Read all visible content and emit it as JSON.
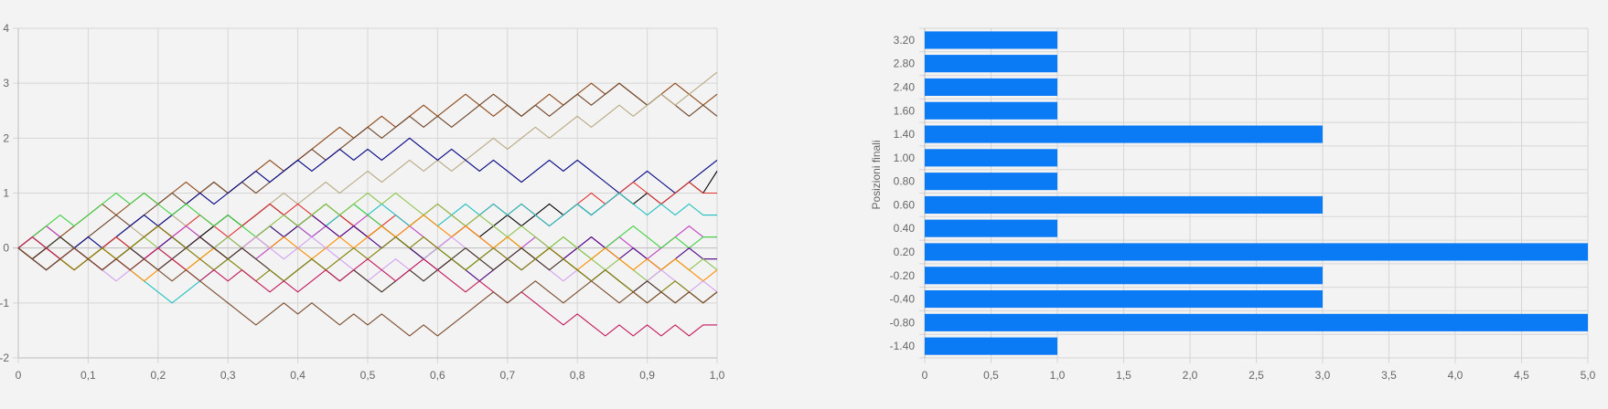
{
  "chart_data": [
    {
      "type": "line",
      "title": "",
      "xlabel": "",
      "ylabel": "",
      "xlim": [
        0,
        1
      ],
      "ylim": [
        -2,
        4
      ],
      "x_tick_labels": [
        "0",
        "0,1",
        "0,2",
        "0,3",
        "0,4",
        "0,5",
        "0,6",
        "0,7",
        "0,8",
        "0,9",
        "1,0"
      ],
      "y_tick_labels": [
        "-2",
        "-1",
        "0",
        "1",
        "2",
        "3",
        "4"
      ],
      "grid": true,
      "legend": "none",
      "steps": 50,
      "step_size": 0.2,
      "series": [
        {
          "color": "#8b4513",
          "end": 2.8,
          "values": [
            0,
            0.2,
            0.4,
            0.2,
            0.4,
            0.6,
            0.8,
            0.6,
            0.8,
            1.0,
            0.8,
            1.0,
            1.2,
            1.0,
            1.2,
            1.0,
            1.2,
            1.4,
            1.6,
            1.4,
            1.6,
            1.8,
            2.0,
            2.2,
            2.0,
            2.2,
            2.4,
            2.2,
            2.4,
            2.6,
            2.4,
            2.6,
            2.8,
            2.6,
            2.4,
            2.6,
            2.4,
            2.6,
            2.8,
            2.6,
            2.8,
            3.0,
            2.8,
            3.0,
            2.8,
            2.6,
            2.8,
            3.0,
            2.8,
            2.6,
            2.8
          ]
        },
        {
          "color": "#6b4226",
          "end": 2.4,
          "values": [
            0,
            -0.2,
            0,
            0.2,
            0,
            0.2,
            0.4,
            0.6,
            0.4,
            0.6,
            0.8,
            1.0,
            0.8,
            1.0,
            1.2,
            1.0,
            1.2,
            1.0,
            1.2,
            1.4,
            1.6,
            1.8,
            1.6,
            1.8,
            2.0,
            2.2,
            2.0,
            2.2,
            2.4,
            2.2,
            2.4,
            2.2,
            2.4,
            2.6,
            2.8,
            2.6,
            2.4,
            2.6,
            2.4,
            2.6,
            2.8,
            2.6,
            2.8,
            3.0,
            2.8,
            2.6,
            2.8,
            2.6,
            2.4,
            2.6,
            2.4
          ]
        },
        {
          "color": "#b8a882",
          "end": 3.2,
          "values": [
            0,
            -0.2,
            0,
            0.2,
            0,
            -0.2,
            0,
            0.2,
            0.4,
            0.2,
            0.4,
            0.6,
            0.4,
            0.2,
            0.4,
            0.6,
            0.4,
            0.6,
            0.8,
            1.0,
            0.8,
            1.0,
            1.2,
            1.0,
            1.2,
            1.4,
            1.2,
            1.4,
            1.6,
            1.4,
            1.6,
            1.4,
            1.6,
            1.8,
            2.0,
            1.8,
            2.0,
            2.2,
            2.0,
            2.2,
            2.4,
            2.2,
            2.4,
            2.6,
            2.4,
            2.6,
            2.8,
            2.6,
            2.8,
            3.0,
            3.2
          ]
        },
        {
          "color": "#000080",
          "end": 1.6,
          "values": [
            0,
            -0.2,
            -0.4,
            -0.2,
            0,
            0.2,
            0,
            0.2,
            0.4,
            0.6,
            0.4,
            0.6,
            0.8,
            1.0,
            0.8,
            1.0,
            1.2,
            1.4,
            1.2,
            1.4,
            1.6,
            1.4,
            1.6,
            1.8,
            1.6,
            1.8,
            1.6,
            1.8,
            2.0,
            1.8,
            1.6,
            1.8,
            1.6,
            1.4,
            1.6,
            1.4,
            1.2,
            1.4,
            1.6,
            1.4,
            1.6,
            1.4,
            1.2,
            1.0,
            1.2,
            1.4,
            1.2,
            1.0,
            1.2,
            1.4,
            1.6
          ]
        },
        {
          "color": "#000000",
          "end": 1.4,
          "values": [
            0,
            -0.2,
            -0.4,
            -0.2,
            0,
            -0.2,
            0,
            0.2,
            0,
            0.2,
            0.4,
            0.2,
            0,
            0.2,
            0.4,
            0.6,
            0.4,
            0.6,
            0.8,
            0.6,
            0.4,
            0.6,
            0.8,
            0.6,
            0.4,
            0.2,
            0.4,
            0.2,
            0,
            -0.2,
            0,
            0.2,
            0.4,
            0.2,
            0.4,
            0.6,
            0.4,
            0.6,
            0.8,
            0.6,
            0.8,
            0.6,
            0.8,
            1.0,
            0.8,
            1.0,
            0.8,
            1.0,
            1.2,
            1.0,
            1.4
          ]
        },
        {
          "color": "#e03030",
          "end": 1.0,
          "values": [
            0,
            0.2,
            0,
            -0.2,
            -0.4,
            -0.2,
            0,
            0.2,
            0,
            0.2,
            0.4,
            0.2,
            0.4,
            0.6,
            0.4,
            0.2,
            0.4,
            0.6,
            0.8,
            0.6,
            0.8,
            0.6,
            0.4,
            0.6,
            0.4,
            0.2,
            0.4,
            0.6,
            0.4,
            0.6,
            0.8,
            0.6,
            0.4,
            0.6,
            0.8,
            0.6,
            0.8,
            0.6,
            0.4,
            0.6,
            0.8,
            1.0,
            0.8,
            1.0,
            1.2,
            1.0,
            0.8,
            1.0,
            1.2,
            1.0,
            1.0
          ]
        },
        {
          "color": "#20c0c0",
          "end": 0.6,
          "values": [
            0,
            0.2,
            0,
            0.2,
            0,
            -0.2,
            -0.4,
            -0.2,
            -0.4,
            -0.6,
            -0.8,
            -1.0,
            -0.8,
            -0.6,
            -0.4,
            -0.2,
            0,
            0.2,
            0,
            0.2,
            0.4,
            0.2,
            0.4,
            0.6,
            0.8,
            0.6,
            0.8,
            0.6,
            0.4,
            0.6,
            0.4,
            0.6,
            0.8,
            0.6,
            0.8,
            0.6,
            0.8,
            0.6,
            0.4,
            0.6,
            0.8,
            0.6,
            0.8,
            1.0,
            0.8,
            0.6,
            0.8,
            0.6,
            0.8,
            0.6,
            0.6
          ]
        },
        {
          "color": "#c040c0",
          "end": 0.2,
          "values": [
            0,
            0.2,
            0.4,
            0.2,
            0,
            -0.2,
            0,
            -0.2,
            -0.4,
            -0.2,
            0,
            0.2,
            0.4,
            0.2,
            0,
            0.2,
            0,
            -0.2,
            0,
            0.2,
            0.4,
            0.2,
            0.4,
            0.2,
            0.4,
            0.6,
            0.4,
            0.2,
            0.4,
            0.2,
            0,
            0.2,
            0.4,
            0.2,
            0,
            -0.2,
            0,
            0.2,
            0,
            -0.2,
            0,
            0.2,
            0,
            0.2,
            0,
            -0.2,
            0,
            0.2,
            0.4,
            0.2,
            0.2
          ]
        },
        {
          "color": "#40d040",
          "end": 0.2,
          "values": [
            0,
            0.2,
            0.4,
            0.6,
            0.4,
            0.6,
            0.8,
            1.0,
            0.8,
            1.0,
            0.8,
            0.6,
            0.8,
            0.6,
            0.4,
            0.6,
            0.4,
            0.2,
            0.4,
            0.2,
            0.4,
            0.6,
            0.8,
            0.6,
            0.8,
            0.6,
            0.4,
            0.2,
            0,
            -0.2,
            0,
            -0.2,
            -0.4,
            -0.2,
            0,
            0.2,
            0,
            -0.2,
            0,
            0.2,
            0,
            -0.2,
            0,
            0.2,
            0.4,
            0.2,
            0,
            0.2,
            0,
            0.2,
            0.2
          ]
        },
        {
          "color": "#4b0082",
          "end": -0.2,
          "values": [
            0,
            -0.2,
            0,
            -0.2,
            -0.4,
            -0.2,
            -0.4,
            -0.2,
            0,
            -0.2,
            0,
            0.2,
            0,
            0.2,
            0,
            -0.2,
            0,
            0.2,
            0.4,
            0.2,
            0.4,
            0.6,
            0.4,
            0.2,
            0.4,
            0.2,
            0,
            0.2,
            0,
            -0.2,
            -0.4,
            -0.2,
            -0.4,
            -0.6,
            -0.4,
            -0.2,
            -0.4,
            -0.2,
            0,
            -0.2,
            0,
            0.2,
            0,
            -0.2,
            0,
            -0.2,
            -0.4,
            -0.2,
            0,
            -0.2,
            -0.2
          ]
        },
        {
          "color": "#8bc34a",
          "end": -0.4,
          "values": [
            0,
            0.2,
            0,
            0.2,
            0,
            -0.2,
            0,
            -0.2,
            0,
            0.2,
            0,
            -0.2,
            -0.4,
            -0.2,
            0,
            0.2,
            0,
            0.2,
            0.4,
            0.6,
            0.4,
            0.6,
            0.8,
            0.6,
            0.8,
            1.0,
            0.8,
            1.0,
            0.8,
            0.6,
            0.8,
            0.6,
            0.4,
            0.6,
            0.4,
            0.2,
            0.4,
            0.2,
            0,
            0.2,
            0,
            -0.2,
            -0.4,
            -0.2,
            -0.4,
            -0.6,
            -0.4,
            -0.2,
            -0.4,
            -0.2,
            -0.4
          ]
        },
        {
          "color": "#ff8c00",
          "end": -0.4,
          "values": [
            0,
            -0.2,
            0,
            -0.2,
            -0.4,
            -0.2,
            0,
            -0.2,
            -0.4,
            -0.6,
            -0.4,
            -0.2,
            -0.4,
            -0.2,
            0,
            -0.2,
            0,
            0.2,
            0,
            0.2,
            0,
            -0.2,
            0,
            0.2,
            0,
            0.2,
            0.4,
            0.2,
            0.4,
            0.6,
            0.4,
            0.2,
            0.4,
            0.2,
            0,
            0.2,
            0,
            -0.2,
            0,
            -0.2,
            -0.4,
            -0.2,
            0,
            -0.2,
            -0.4,
            -0.2,
            -0.4,
            -0.2,
            -0.4,
            -0.6,
            -0.4
          ]
        },
        {
          "color": "#d2a0f0",
          "end": -0.8,
          "values": [
            0,
            0.2,
            0,
            -0.2,
            0,
            -0.2,
            -0.4,
            -0.6,
            -0.4,
            -0.2,
            -0.4,
            -0.2,
            0,
            -0.2,
            -0.4,
            -0.2,
            0,
            0.2,
            0,
            -0.2,
            0,
            0.2,
            0,
            -0.2,
            -0.4,
            -0.6,
            -0.4,
            -0.2,
            -0.4,
            -0.2,
            0,
            0.2,
            0,
            -0.2,
            0,
            -0.2,
            -0.4,
            -0.2,
            -0.4,
            -0.6,
            -0.4,
            -0.6,
            -0.4,
            -0.6,
            -0.8,
            -0.6,
            -0.4,
            -0.6,
            -0.8,
            -0.6,
            -0.8
          ]
        },
        {
          "color": "#3d2b1f",
          "end": -0.8,
          "values": [
            0,
            -0.2,
            0,
            0.2,
            0,
            -0.2,
            -0.4,
            -0.2,
            0,
            -0.2,
            -0.4,
            -0.2,
            0,
            0.2,
            0,
            -0.2,
            0,
            -0.2,
            -0.4,
            -0.6,
            -0.4,
            -0.2,
            -0.4,
            -0.6,
            -0.4,
            -0.6,
            -0.8,
            -0.6,
            -0.4,
            -0.6,
            -0.4,
            -0.2,
            0,
            -0.2,
            -0.4,
            -0.2,
            0,
            -0.2,
            -0.4,
            -0.2,
            -0.4,
            -0.6,
            -0.4,
            -0.6,
            -0.8,
            -0.6,
            -0.8,
            -1.0,
            -0.8,
            -1.0,
            -0.8
          ]
        },
        {
          "color": "#808000",
          "end": -0.8,
          "values": [
            0,
            0.2,
            0,
            -0.2,
            -0.4,
            -0.2,
            0,
            -0.2,
            0,
            0.2,
            0.4,
            0.2,
            0,
            -0.2,
            -0.4,
            -0.2,
            -0.4,
            -0.6,
            -0.4,
            -0.6,
            -0.4,
            -0.2,
            -0.4,
            -0.2,
            0,
            -0.2,
            0,
            0.2,
            0,
            0.2,
            0,
            -0.2,
            -0.4,
            -0.2,
            0,
            -0.2,
            -0.4,
            -0.2,
            0,
            -0.2,
            -0.4,
            -0.6,
            -0.4,
            -0.6,
            -0.8,
            -1.0,
            -0.8,
            -0.6,
            -0.8,
            -1.0,
            -0.8
          ]
        },
        {
          "color": "#c2185b",
          "end": -1.4,
          "values": [
            0,
            0.2,
            0,
            -0.2,
            0,
            -0.2,
            -0.4,
            -0.2,
            -0.4,
            -0.2,
            0,
            -0.2,
            -0.4,
            -0.6,
            -0.4,
            -0.6,
            -0.4,
            -0.6,
            -0.8,
            -0.6,
            -0.8,
            -0.6,
            -0.4,
            -0.6,
            -0.4,
            -0.2,
            -0.4,
            -0.6,
            -0.4,
            -0.2,
            -0.4,
            -0.6,
            -0.8,
            -0.6,
            -0.8,
            -1.0,
            -0.8,
            -1.0,
            -1.2,
            -1.4,
            -1.2,
            -1.4,
            -1.6,
            -1.4,
            -1.6,
            -1.4,
            -1.6,
            -1.4,
            -1.6,
            -1.4,
            -1.4
          ]
        },
        {
          "color": "#7a4a2a",
          "end": -0.8,
          "values": [
            0,
            -0.2,
            -0.4,
            -0.2,
            0,
            -0.2,
            -0.4,
            -0.2,
            -0.4,
            -0.2,
            -0.4,
            -0.6,
            -0.4,
            -0.6,
            -0.8,
            -1.0,
            -1.2,
            -1.4,
            -1.2,
            -1.0,
            -1.2,
            -1.0,
            -1.2,
            -1.4,
            -1.2,
            -1.4,
            -1.2,
            -1.4,
            -1.6,
            -1.4,
            -1.6,
            -1.4,
            -1.2,
            -1.0,
            -0.8,
            -1.0,
            -0.8,
            -0.6,
            -0.8,
            -1.0,
            -0.8,
            -0.6,
            -0.8,
            -1.0,
            -0.8,
            -1.0,
            -0.8,
            -1.0,
            -0.8,
            -1.0,
            -0.8
          ]
        }
      ]
    },
    {
      "type": "bar",
      "orientation": "horizontal",
      "title": "",
      "xlabel": "",
      "ylabel": "Posizioni finali",
      "xlim": [
        0,
        5
      ],
      "x_tick_labels": [
        "0",
        "0,5",
        "1,0",
        "1,5",
        "2,0",
        "2,5",
        "3,0",
        "3,5",
        "4,0",
        "4,5",
        "5,0"
      ],
      "categories": [
        "3.20",
        "2.80",
        "2.40",
        "1.60",
        "1.40",
        "1.00",
        "0.80",
        "0.60",
        "0.40",
        "0.20",
        "-0.20",
        "-0.40",
        "-0.80",
        "-1.40"
      ],
      "values": [
        1,
        1,
        1,
        1,
        3,
        1,
        1,
        3,
        1,
        5,
        3,
        3,
        5,
        1
      ],
      "bar_color": "#0a7af5",
      "grid": true,
      "legend": "none"
    }
  ]
}
